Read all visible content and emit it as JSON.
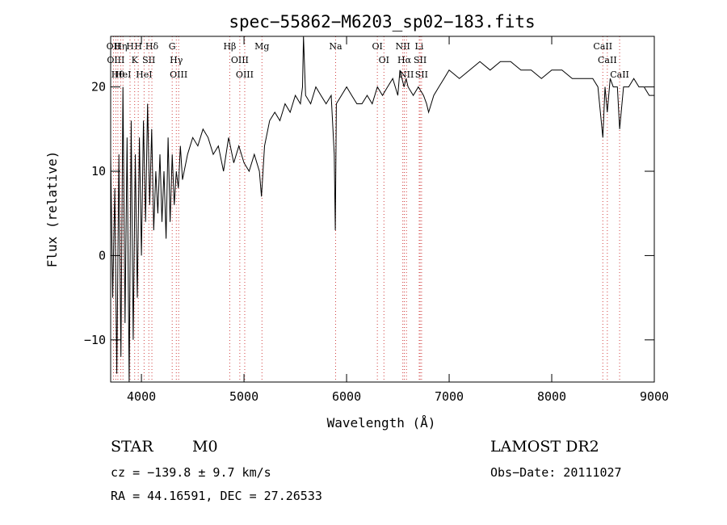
{
  "chart_data": {
    "type": "line",
    "title": "spec−55862−M6203_sp02−183.fits",
    "xlabel": "Wavelength (Å)",
    "ylabel": "Flux (relative)",
    "xlim": [
      3700,
      9000
    ],
    "ylim": [
      -15,
      26
    ],
    "x_ticks": [
      4000,
      5000,
      6000,
      7000,
      8000,
      9000
    ],
    "x_tick_labels": [
      "4000",
      "5000",
      "6000",
      "7000",
      "8000",
      "9000"
    ],
    "y_ticks": [
      -10,
      0,
      10,
      20
    ],
    "y_tick_labels": [
      "−10",
      "0",
      "10",
      "20"
    ],
    "grid": false,
    "line_color": "#000000",
    "marker_color": "#d04040",
    "series": [
      {
        "x": [
          3700,
          3720,
          3740,
          3760,
          3780,
          3800,
          3820,
          3840,
          3860,
          3880,
          3900,
          3920,
          3940,
          3960,
          3980,
          4000,
          4020,
          4040,
          4060,
          4080,
          4100,
          4120,
          4140,
          4160,
          4180,
          4200,
          4220,
          4240,
          4260,
          4280,
          4300,
          4320,
          4340,
          4360,
          4380,
          4400,
          4450,
          4500,
          4550,
          4600,
          4650,
          4700,
          4750,
          4800,
          4850,
          4900,
          4950,
          5000,
          5050,
          5100,
          5150,
          5170,
          5200,
          5250,
          5300,
          5350,
          5400,
          5450,
          5500,
          5550,
          5570,
          5580,
          5600,
          5650,
          5700,
          5750,
          5800,
          5850,
          5880,
          5890,
          5900,
          5950,
          6000,
          6050,
          6100,
          6150,
          6200,
          6250,
          6300,
          6350,
          6400,
          6450,
          6500,
          6520,
          6560,
          6580,
          6600,
          6650,
          6700,
          6750,
          6780,
          6800,
          6850,
          6900,
          6950,
          7000,
          7100,
          7200,
          7300,
          7400,
          7500,
          7600,
          7700,
          7800,
          7900,
          8000,
          8100,
          8200,
          8300,
          8400,
          8450,
          8498,
          8520,
          8542,
          8570,
          8600,
          8640,
          8662,
          8700,
          8750,
          8800,
          8850,
          8900,
          8950,
          9000
        ],
        "y": [
          12,
          -5,
          8,
          -14,
          12,
          -12,
          20,
          -8,
          14,
          -15,
          16,
          -10,
          12,
          -5,
          14,
          0,
          16,
          4,
          18,
          6,
          15,
          3,
          10,
          5,
          12,
          4,
          10,
          2,
          14,
          4,
          12,
          6,
          10,
          8,
          13,
          9,
          12,
          14,
          13,
          15,
          14,
          12,
          13,
          10,
          14,
          11,
          13,
          11,
          10,
          12,
          10,
          7,
          13,
          16,
          17,
          16,
          18,
          17,
          19,
          18,
          20,
          26,
          19,
          18,
          20,
          19,
          18,
          19,
          12,
          3,
          18,
          19,
          20,
          19,
          18,
          18,
          19,
          18,
          20,
          19,
          20,
          21,
          19,
          22,
          20,
          21,
          20,
          19,
          20,
          19,
          18,
          17,
          19,
          20,
          21,
          22,
          21,
          22,
          23,
          22,
          23,
          23,
          22,
          22,
          21,
          22,
          22,
          21,
          21,
          21,
          20,
          14,
          20,
          17,
          21,
          20,
          20,
          15,
          20,
          20,
          21,
          20,
          20,
          19,
          19
        ]
      }
    ],
    "lines": [
      {
        "x": 3727,
        "label": "OII"
      },
      {
        "x": 3750,
        "label": "OIII"
      },
      {
        "x": 3770,
        "label": "Hθ"
      },
      {
        "x": 3798,
        "label": "Hη"
      },
      {
        "x": 3820,
        "label": "HeI"
      },
      {
        "x": 3889,
        "label": "H"
      },
      {
        "x": 3934,
        "label": "K"
      },
      {
        "x": 3969,
        "label": "H"
      },
      {
        "x": 4026,
        "label": "HeI"
      },
      {
        "x": 4072,
        "label": "SII"
      },
      {
        "x": 4102,
        "label": "Hδ"
      },
      {
        "x": 4300,
        "label": "G"
      },
      {
        "x": 4340,
        "label": "Hγ"
      },
      {
        "x": 4363,
        "label": "OIII"
      },
      {
        "x": 4861,
        "label": "Hβ"
      },
      {
        "x": 4959,
        "label": "OIII"
      },
      {
        "x": 5007,
        "label": "OIII"
      },
      {
        "x": 5175,
        "label": "Mg"
      },
      {
        "x": 5893,
        "label": "Na"
      },
      {
        "x": 6300,
        "label": "OI"
      },
      {
        "x": 6364,
        "label": "OI"
      },
      {
        "x": 6548,
        "label": "NII"
      },
      {
        "x": 6563,
        "label": "Hα"
      },
      {
        "x": 6584,
        "label": "NII"
      },
      {
        "x": 6708,
        "label": "Li"
      },
      {
        "x": 6717,
        "label": "SII"
      },
      {
        "x": 6731,
        "label": "SII"
      },
      {
        "x": 8498,
        "label": "CaII"
      },
      {
        "x": 8542,
        "label": "CaII"
      },
      {
        "x": 8662,
        "label": "CaII"
      }
    ]
  },
  "info": {
    "object_class": "STAR",
    "subclass": "M0",
    "survey": "LAMOST DR2",
    "cz": "cz = −139.8 ± 9.7 km/s",
    "obs_date": "Obs−Date: 20111027",
    "coords": "RA =  44.16591, DEC =  27.26533"
  }
}
